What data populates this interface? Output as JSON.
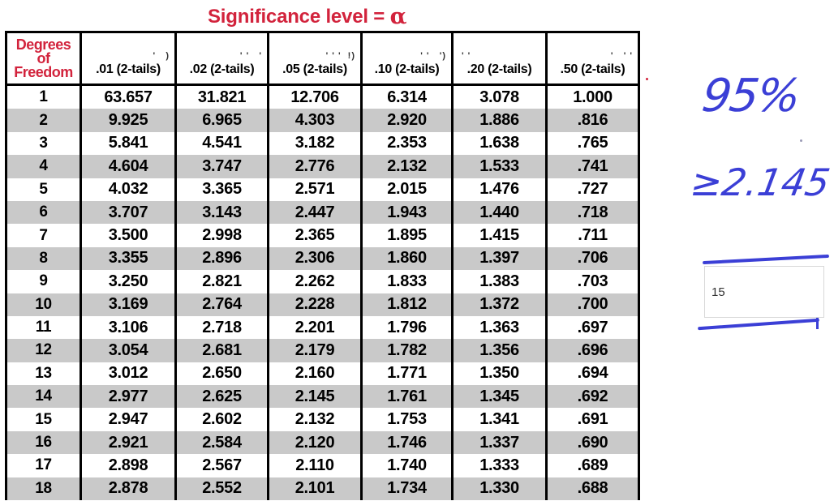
{
  "title": {
    "text": "Significance level = ",
    "symbol": "α"
  },
  "header": {
    "df_label": [
      "Degrees",
      "of",
      "Freedom"
    ],
    "columns": [
      ".01 (2-tails)",
      ".02 (2-tails)",
      ".05 (2-tails)",
      ".10 (2-tails)",
      ".20 (2-tails)",
      ".50 (2-tails)"
    ]
  },
  "rows": [
    [
      "1",
      "63.657",
      "31.821",
      "12.706",
      "6.314",
      "3.078",
      "1.000"
    ],
    [
      "2",
      "9.925",
      "6.965",
      "4.303",
      "2.920",
      "1.886",
      ".816"
    ],
    [
      "3",
      "5.841",
      "4.541",
      "3.182",
      "2.353",
      "1.638",
      ".765"
    ],
    [
      "4",
      "4.604",
      "3.747",
      "2.776",
      "2.132",
      "1.533",
      ".741"
    ],
    [
      "5",
      "4.032",
      "3.365",
      "2.571",
      "2.015",
      "1.476",
      ".727"
    ],
    [
      "6",
      "3.707",
      "3.143",
      "2.447",
      "1.943",
      "1.440",
      ".718"
    ],
    [
      "7",
      "3.500",
      "2.998",
      "2.365",
      "1.895",
      "1.415",
      ".711"
    ],
    [
      "8",
      "3.355",
      "2.896",
      "2.306",
      "1.860",
      "1.397",
      ".706"
    ],
    [
      "9",
      "3.250",
      "2.821",
      "2.262",
      "1.833",
      "1.383",
      ".703"
    ],
    [
      "10",
      "3.169",
      "2.764",
      "2.228",
      "1.812",
      "1.372",
      ".700"
    ],
    [
      "11",
      "3.106",
      "2.718",
      "2.201",
      "1.796",
      "1.363",
      ".697"
    ],
    [
      "12",
      "3.054",
      "2.681",
      "2.179",
      "1.782",
      "1.356",
      ".696"
    ],
    [
      "13",
      "3.012",
      "2.650",
      "2.160",
      "1.771",
      "1.350",
      ".694"
    ],
    [
      "14",
      "2.977",
      "2.625",
      "2.145",
      "1.761",
      "1.345",
      ".692"
    ],
    [
      "15",
      "2.947",
      "2.602",
      "2.132",
      "1.753",
      "1.341",
      ".691"
    ],
    [
      "16",
      "2.921",
      "2.584",
      "2.120",
      "1.746",
      "1.337",
      ".690"
    ],
    [
      "17",
      "2.898",
      "2.567",
      "2.110",
      "1.740",
      "1.333",
      ".689"
    ],
    [
      "18",
      "2.878",
      "2.552",
      "2.101",
      "1.734",
      "1.330",
      ".688"
    ]
  ],
  "annotations": {
    "percent": "95%",
    "threshold": "≥2.145"
  },
  "answer_input": {
    "value": "15"
  },
  "colors": {
    "title_red": "#d2233c",
    "ink_blue": "#3b3fd6",
    "row_shade": "#c9c9c9"
  }
}
